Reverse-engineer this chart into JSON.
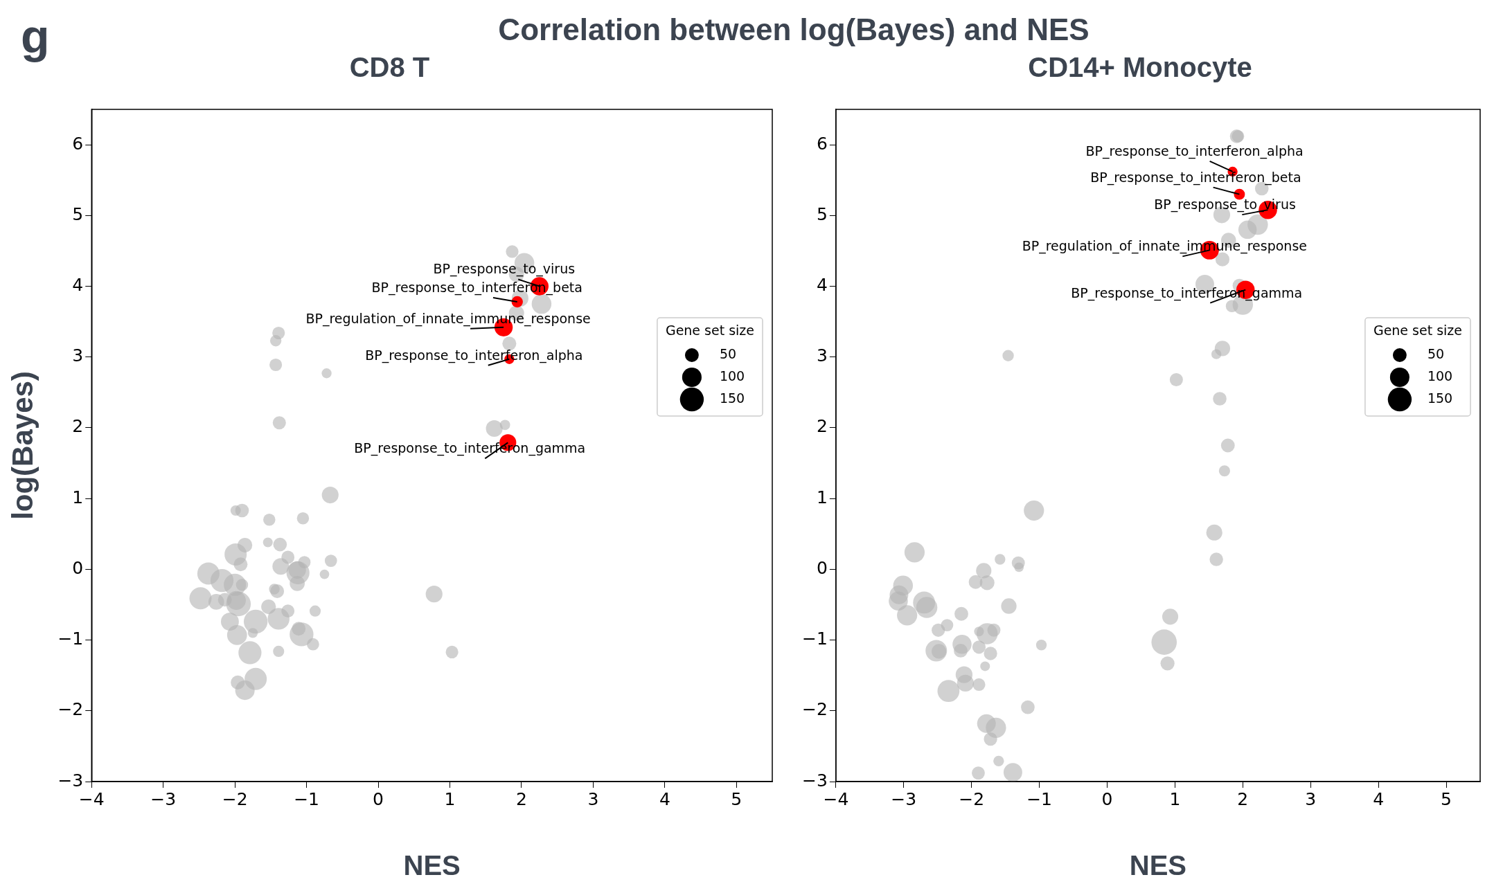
{
  "chart_data": [
    {
      "type": "bubble",
      "title": "CD8 T",
      "xlabel": "NES",
      "ylabel": "log(Bayes)",
      "legend_title": "Gene set size",
      "size_legend": [
        50,
        100,
        150
      ],
      "grid": false,
      "xlim": [
        -4,
        5.5
      ],
      "ylim": [
        -3,
        6.5
      ],
      "xticks": [
        -4,
        -3,
        -2,
        -1,
        0,
        1,
        2,
        3,
        4,
        5
      ],
      "yticks": [
        -3,
        -2,
        -1,
        0,
        1,
        2,
        3,
        4,
        5,
        6
      ],
      "annotations": [
        "g",
        "Correlation between log(Bayes) and NES",
        {
          "text": "BP_response_to_virus",
          "x": 2.25,
          "y": 4.0
        },
        {
          "text": "BP_response_to_interferon_beta",
          "x": 1.94,
          "y": 3.78
        },
        {
          "text": "BP_regulation_of_innate_immune_response",
          "x": 1.75,
          "y": 3.42
        },
        {
          "text": "BP_response_to_interferon_alpha",
          "x": 1.83,
          "y": 2.97
        },
        {
          "text": "BP_response_to_interferon_gamma",
          "x": 1.81,
          "y": 1.79
        }
      ],
      "series": [
        {
          "color": "#b3b3b3",
          "x": [
            1.87,
            2.04,
            1.93,
            1.98,
            2.28,
            1.93,
            1.83,
            1.62,
            1.77,
            -1.39,
            -1.43,
            -1.43,
            -0.72,
            -1.38,
            -0.67,
            0.78,
            1.03,
            -1.99,
            -1.9,
            -1.52,
            -1.05,
            -1.54,
            -1.37,
            -1.86,
            -1.99,
            -1.92,
            -1.26,
            -1.03,
            -1.36,
            -1.12,
            -1.13,
            -1.13,
            -0.75,
            -0.66,
            -2.37,
            -2.18,
            -2.0,
            -1.9,
            -1.41,
            -1.45,
            -2.48,
            -2.26,
            -1.98,
            -1.95,
            -2.14,
            -1.53,
            -1.26,
            -0.88,
            -2.07,
            -1.71,
            -1.39,
            -1.75,
            -1.97,
            -1.07,
            -1.11,
            -0.91,
            -1.79,
            -1.39,
            -1.71,
            -1.96,
            -1.86
          ],
          "values": [
            4.49,
            4.33,
            4.17,
            3.83,
            3.75,
            3.62,
            3.19,
            1.99,
            2.04,
            3.34,
            3.23,
            2.89,
            2.77,
            2.07,
            1.05,
            -0.35,
            -1.17,
            0.83,
            0.83,
            0.7,
            0.72,
            0.38,
            0.35,
            0.34,
            0.21,
            0.07,
            0.17,
            0.1,
            0.04,
            -0.05,
            -0.01,
            -0.2,
            -0.07,
            0.12,
            -0.06,
            -0.16,
            -0.22,
            -0.22,
            -0.31,
            -0.28,
            -0.41,
            -0.46,
            -0.44,
            -0.49,
            -0.43,
            -0.53,
            -0.59,
            -0.59,
            -0.74,
            -0.74,
            -0.7,
            -0.9,
            -0.93,
            -0.92,
            -0.84,
            -1.06,
            -1.18,
            -1.16,
            -1.55,
            -1.6,
            -1.71
          ],
          "sizes": [
            42,
            103,
            61,
            74,
            103,
            61,
            51,
            74,
            28,
            42,
            34,
            42,
            26,
            46,
            74,
            74,
            42,
            28,
            49,
            39,
            39,
            25,
            49,
            57,
            130,
            50,
            45,
            40,
            73,
            140,
            80,
            60,
            24,
            40,
            130,
            140,
            130,
            39,
            50,
            30,
            130,
            65,
            95,
            160,
            50,
            57,
            45,
            33,
            85,
            150,
            125,
            26,
            105,
            150,
            50,
            40,
            140,
            33,
            130,
            52,
            100
          ]
        },
        {
          "color": "#ff0000",
          "x": [
            2.25,
            1.94,
            1.75,
            1.83,
            1.81
          ],
          "values": [
            4.0,
            3.78,
            3.42,
            2.97,
            1.79
          ],
          "sizes": [
            88,
            34,
            88,
            26,
            74
          ]
        }
      ]
    },
    {
      "type": "bubble",
      "title": "CD14+ Monocyte",
      "xlabel": "NES",
      "legend_title": "Gene set size",
      "size_legend": [
        50,
        100,
        150
      ],
      "grid": false,
      "xlim": [
        -4,
        5.5
      ],
      "ylim": [
        -3,
        6.5
      ],
      "xticks": [
        -4,
        -3,
        -2,
        -1,
        0,
        1,
        2,
        3,
        4,
        5
      ],
      "yticks": [
        -3,
        -2,
        -1,
        0,
        1,
        2,
        3,
        4,
        5,
        6
      ],
      "annotations": [
        {
          "text": "BP_response_to_interferon_alpha",
          "x": 1.85,
          "y": 5.62
        },
        {
          "text": "BP_response_to_interferon_beta",
          "x": 1.95,
          "y": 5.3
        },
        {
          "text": "BP_response_to_virus",
          "x": 2.37,
          "y": 5.08
        },
        {
          "text": "BP_regulation_of_innate_immune_response",
          "x": 1.51,
          "y": 4.51
        },
        {
          "text": "BP_response_to_interferon_gamma",
          "x": 2.04,
          "y": 3.95
        }
      ],
      "series": [
        {
          "color": "#b3b3b3",
          "x": [
            1.91,
            1.93,
            2.28,
            1.69,
            2.07,
            2.22,
            1.79,
            1.7,
            1.44,
            1.95,
            2.0,
            1.84,
            1.7,
            1.61,
            1.02,
            1.66,
            -1.46,
            1.78,
            1.73,
            1.58,
            1.61,
            -1.08,
            0.93,
            0.84,
            0.89,
            -1.58,
            -1.31,
            -1.3,
            -1.82,
            -1.94,
            -1.77,
            -1.45,
            -0.97,
            -2.84,
            -3.01,
            -3.07,
            -3.08,
            -2.95,
            -2.7,
            -2.66,
            -2.15,
            -2.49,
            -2.36,
            -2.52,
            -2.48,
            -2.14,
            -2.16,
            -1.89,
            -1.72,
            -1.77,
            -1.67,
            -1.89,
            -1.8,
            -2.11,
            -2.09,
            -1.89,
            -2.34,
            -1.17,
            -1.78,
            -1.64,
            -1.72,
            -1.6,
            -1.9,
            -1.39
          ],
          "values": [
            6.12,
            6.12,
            5.38,
            5.01,
            4.8,
            4.87,
            4.65,
            4.38,
            4.03,
            4.01,
            3.74,
            3.72,
            3.12,
            3.04,
            2.68,
            2.41,
            3.02,
            1.75,
            1.39,
            0.52,
            0.14,
            0.83,
            -0.67,
            -1.03,
            -1.33,
            0.14,
            0.09,
            0.03,
            -0.02,
            -0.18,
            -0.19,
            -0.52,
            -1.07,
            0.24,
            -0.23,
            -0.36,
            -0.45,
            -0.65,
            -0.47,
            -0.54,
            -0.63,
            -0.86,
            -0.79,
            -1.15,
            -1.16,
            -1.06,
            -1.15,
            -1.1,
            -1.19,
            -0.91,
            -0.86,
            -0.88,
            -1.37,
            -1.49,
            -1.61,
            -1.63,
            -1.72,
            -1.95,
            -2.18,
            -2.24,
            -2.4,
            -2.71,
            -2.88,
            -2.87
          ],
          "sizes": [
            49,
            40,
            49,
            74,
            89,
            110,
            59,
            52,
            92,
            49,
            110,
            40,
            63,
            26,
            46,
            49,
            34,
            50,
            33,
            68,
            48,
            108,
            68,
            170,
            52,
            30,
            45,
            24,
            62,
            50,
            57,
            63,
            30,
            108,
            103,
            92,
            96,
            108,
            128,
            118,
            50,
            47,
            40,
            122,
            57,
            96,
            50,
            47,
            47,
            118,
            45,
            25,
            25,
            75,
            75,
            42,
            128,
            49,
            92,
            108,
            47,
            30,
            45,
            92
          ]
        },
        {
          "color": "#ff0000",
          "x": [
            1.85,
            1.95,
            2.37,
            1.51,
            2.04
          ],
          "values": [
            5.62,
            5.3,
            5.08,
            4.51,
            3.95
          ],
          "sizes": [
            26,
            32,
            89,
            92,
            89
          ]
        }
      ]
    }
  ]
}
